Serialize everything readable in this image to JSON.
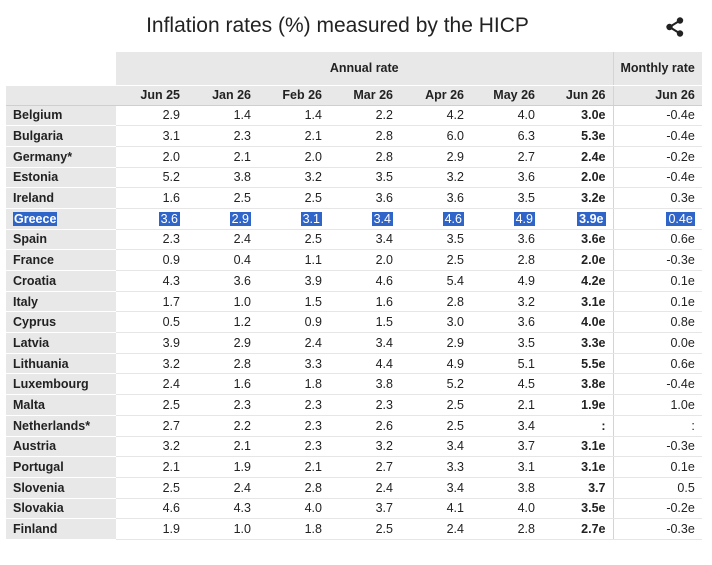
{
  "title": "Inflation rates (%) measured by the HICP",
  "share_icon": "share-icon",
  "header": {
    "annual_rate": "Annual rate",
    "monthly_rate": "Monthly rate",
    "columns": [
      "Jun 25",
      "Jan 26",
      "Feb 26",
      "Mar 26",
      "Apr 26",
      "May 26",
      "Jun 26",
      "Jun 26"
    ]
  },
  "rows": [
    {
      "country": "Belgium",
      "values": [
        "2.9",
        "1.4",
        "1.4",
        "2.2",
        "4.2",
        "4.0",
        "3.0e",
        "-0.4e"
      ]
    },
    {
      "country": "Bulgaria",
      "values": [
        "3.1",
        "2.3",
        "2.1",
        "2.8",
        "6.0",
        "6.3",
        "5.3e",
        "-0.4e"
      ]
    },
    {
      "country": "Germany*",
      "values": [
        "2.0",
        "2.1",
        "2.0",
        "2.8",
        "2.9",
        "2.7",
        "2.4e",
        "-0.2e"
      ]
    },
    {
      "country": "Estonia",
      "values": [
        "5.2",
        "3.8",
        "3.2",
        "3.5",
        "3.2",
        "3.6",
        "2.0e",
        "-0.4e"
      ]
    },
    {
      "country": "Ireland",
      "values": [
        "1.6",
        "2.5",
        "2.5",
        "3.6",
        "3.6",
        "3.5",
        "3.2e",
        "0.3e"
      ]
    },
    {
      "country": "Greece",
      "values": [
        "3.6",
        "2.9",
        "3.1",
        "3.4",
        "4.6",
        "4.9",
        "3.9e",
        "0.4e"
      ],
      "selected": true
    },
    {
      "country": "Spain",
      "values": [
        "2.3",
        "2.4",
        "2.5",
        "3.4",
        "3.5",
        "3.6",
        "3.6e",
        "0.6e"
      ]
    },
    {
      "country": "France",
      "values": [
        "0.9",
        "0.4",
        "1.1",
        "2.0",
        "2.5",
        "2.8",
        "2.0e",
        "-0.3e"
      ]
    },
    {
      "country": "Croatia",
      "values": [
        "4.3",
        "3.6",
        "3.9",
        "4.6",
        "5.4",
        "4.9",
        "4.2e",
        "0.1e"
      ]
    },
    {
      "country": "Italy",
      "values": [
        "1.7",
        "1.0",
        "1.5",
        "1.6",
        "2.8",
        "3.2",
        "3.1e",
        "0.1e"
      ]
    },
    {
      "country": "Cyprus",
      "values": [
        "0.5",
        "1.2",
        "0.9",
        "1.5",
        "3.0",
        "3.6",
        "4.0e",
        "0.8e"
      ]
    },
    {
      "country": "Latvia",
      "values": [
        "3.9",
        "2.9",
        "2.4",
        "3.4",
        "2.9",
        "3.5",
        "3.3e",
        "0.0e"
      ]
    },
    {
      "country": "Lithuania",
      "values": [
        "3.2",
        "2.8",
        "3.3",
        "4.4",
        "4.9",
        "5.1",
        "5.5e",
        "0.6e"
      ]
    },
    {
      "country": "Luxembourg",
      "values": [
        "2.4",
        "1.6",
        "1.8",
        "3.8",
        "5.2",
        "4.5",
        "3.8e",
        "-0.4e"
      ]
    },
    {
      "country": "Malta",
      "values": [
        "2.5",
        "2.3",
        "2.3",
        "2.3",
        "2.5",
        "2.1",
        "1.9e",
        "1.0e"
      ]
    },
    {
      "country": "Netherlands*",
      "values": [
        "2.7",
        "2.2",
        "2.3",
        "2.6",
        "2.5",
        "3.4",
        ":",
        ":"
      ]
    },
    {
      "country": "Austria",
      "values": [
        "3.2",
        "2.1",
        "2.3",
        "3.2",
        "3.4",
        "3.7",
        "3.1e",
        "-0.3e"
      ]
    },
    {
      "country": "Portugal",
      "values": [
        "2.1",
        "1.9",
        "2.1",
        "2.7",
        "3.3",
        "3.1",
        "3.1e",
        "0.1e"
      ]
    },
    {
      "country": "Slovenia",
      "values": [
        "2.5",
        "2.4",
        "2.8",
        "2.4",
        "3.4",
        "3.8",
        "3.7",
        "0.5"
      ]
    },
    {
      "country": "Slovakia",
      "values": [
        "4.6",
        "4.3",
        "4.0",
        "3.7",
        "4.1",
        "4.0",
        "3.5e",
        "-0.2e"
      ]
    },
    {
      "country": "Finland",
      "values": [
        "1.9",
        "1.0",
        "1.8",
        "2.5",
        "2.4",
        "2.8",
        "2.7e",
        "-0.3e"
      ]
    }
  ],
  "colors": {
    "header_bg": "#e8e8e8",
    "selection": "#2f64c8"
  }
}
